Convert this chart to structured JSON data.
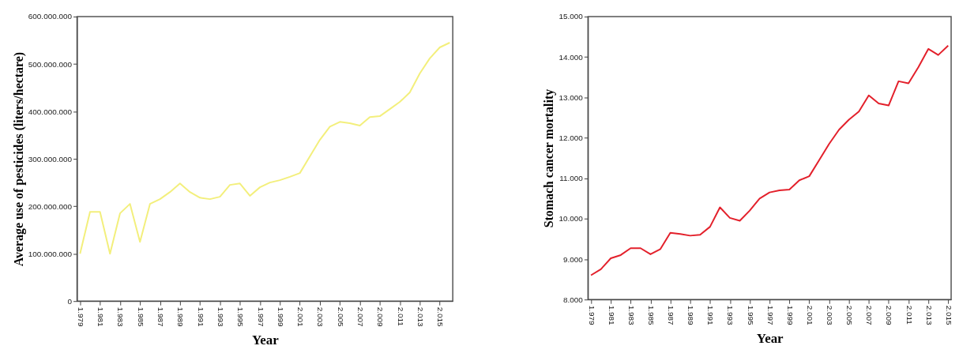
{
  "chart_data": [
    {
      "type": "line",
      "xlabel": "Year",
      "ylabel": "Average use of pesticides (liters/hectare)",
      "categories": [
        "1.979",
        null,
        "1.981",
        null,
        "1.983",
        null,
        "1.985",
        null,
        "1.987",
        null,
        "1.989",
        null,
        "1.991",
        null,
        "1.993",
        null,
        "1.995",
        null,
        "1.997",
        null,
        "1.999",
        null,
        "2.001",
        null,
        "2.003",
        null,
        "2.005",
        null,
        "2.007",
        null,
        "2.009",
        null,
        "2.011",
        null,
        "2.013",
        null,
        "2.015",
        null
      ],
      "series": [
        {
          "color": "#f3ef7c",
          "values": [
            100000000,
            188000000,
            188000000,
            100000000,
            185000000,
            205000000,
            125000000,
            205000000,
            215000000,
            230000000,
            248000000,
            230000000,
            218000000,
            215000000,
            220000000,
            245000000,
            248000000,
            222000000,
            240000000,
            250000000,
            255000000,
            262000000,
            270000000,
            305000000,
            340000000,
            368000000,
            378000000,
            375000000,
            370000000,
            388000000,
            390000000,
            405000000,
            420000000,
            440000000,
            480000000,
            512000000,
            535000000,
            545000000
          ]
        }
      ],
      "ylim": [
        0,
        600000000
      ],
      "yticks": [
        0,
        {
          "value": 100000000,
          "label": "100.000.000"
        },
        {
          "value": 200000000,
          "label": "200.000.000"
        },
        {
          "value": 300000000,
          "label": "300.000.000"
        },
        {
          "value": 400000000,
          "label": "400.000.000"
        },
        {
          "value": 500000000,
          "label": "500.000.000"
        },
        {
          "value": 600000000,
          "label": "600.000.000"
        }
      ],
      "grid": false,
      "marker": "none",
      "line_style": "solid"
    },
    {
      "type": "line",
      "xlabel": "Year",
      "ylabel": "Stomach cancer mortality",
      "categories": [
        "1.979",
        null,
        "1.981",
        null,
        "1.983",
        null,
        "1.985",
        null,
        "1.987",
        null,
        "1.989",
        null,
        "1.991",
        null,
        "1.993",
        null,
        "1.995",
        null,
        "1.997",
        null,
        "1.999",
        null,
        "2.001",
        null,
        "2.003",
        null,
        "2.005",
        null,
        "2.007",
        null,
        "2.009",
        null,
        "2.011",
        null,
        "2.013",
        null,
        "2.015"
      ],
      "series": [
        {
          "color": "#e3202b",
          "values": [
            8600,
            8750,
            9020,
            9100,
            9270,
            9270,
            9120,
            9250,
            9650,
            9620,
            9580,
            9600,
            9800,
            10280,
            10020,
            9950,
            10200,
            10500,
            10650,
            10700,
            10720,
            10950,
            11050,
            11450,
            11850,
            12200,
            12450,
            12650,
            13050,
            12850,
            12800,
            13400,
            13350,
            13750,
            14200,
            14050,
            14280
          ]
        }
      ],
      "ylim": [
        8000,
        15000
      ],
      "yticks": [
        {
          "value": 8000,
          "label": "8.000"
        },
        {
          "value": 9000,
          "label": "9.000"
        },
        {
          "value": 10000,
          "label": "10.000"
        },
        {
          "value": 11000,
          "label": "11.000"
        },
        {
          "value": 12000,
          "label": "12.000"
        },
        {
          "value": 13000,
          "label": "13.000"
        },
        {
          "value": 14000,
          "label": "14.000"
        },
        {
          "value": 15000,
          "label": "15.000"
        }
      ],
      "grid": false,
      "marker": "none",
      "line_style": "solid"
    }
  ]
}
